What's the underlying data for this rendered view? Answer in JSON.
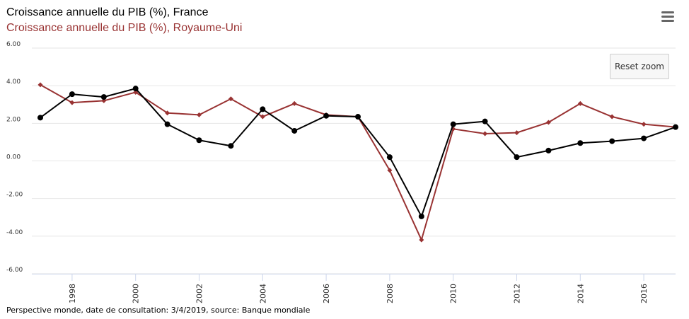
{
  "header": {
    "title_france": "Croissance annuelle du PIB (%), France",
    "title_uk": "Croissance annuelle du PIB (%), Royaume-Uni",
    "menu_icon": "hamburger-menu-icon",
    "reset_zoom_label": "Reset zoom"
  },
  "footer": {
    "credits": "Perspective monde, date de consultation: 3/4/2019, source: Banque mondiale"
  },
  "chart_data": {
    "type": "line",
    "x": [
      1997,
      1998,
      1999,
      2000,
      2001,
      2002,
      2003,
      2004,
      2005,
      2006,
      2007,
      2008,
      2009,
      2010,
      2011,
      2012,
      2013,
      2014,
      2015,
      2016,
      2017
    ],
    "series": [
      {
        "name": "Croissance annuelle du PIB (%), France",
        "color": "#000000",
        "marker": "circle",
        "values": [
          2.3,
          3.55,
          3.4,
          3.85,
          1.95,
          1.1,
          0.8,
          2.75,
          1.6,
          2.4,
          2.35,
          0.2,
          -2.95,
          1.95,
          2.1,
          0.2,
          0.55,
          0.95,
          1.05,
          1.2,
          1.8
        ]
      },
      {
        "name": "Croissance annuelle du PIB (%), Royaume-Uni",
        "color": "#993333",
        "marker": "diamond",
        "values": [
          4.05,
          3.1,
          3.2,
          3.65,
          2.55,
          2.45,
          3.3,
          2.35,
          3.05,
          2.45,
          2.35,
          -0.5,
          -4.2,
          1.7,
          1.45,
          1.5,
          2.05,
          3.05,
          2.35,
          1.95,
          1.8
        ]
      }
    ],
    "yticks": [
      "6.00",
      "4.00",
      "2.00",
      "0.00",
      "-2.00",
      "-4.00",
      "-6.00"
    ],
    "xticks": [
      "1998",
      "2000",
      "2002",
      "2004",
      "2006",
      "2008",
      "2010",
      "2012",
      "2014",
      "2016"
    ],
    "ylim": [
      -6,
      6
    ],
    "xlim": [
      1997,
      2017
    ],
    "grid": true,
    "legend": "top-left"
  }
}
